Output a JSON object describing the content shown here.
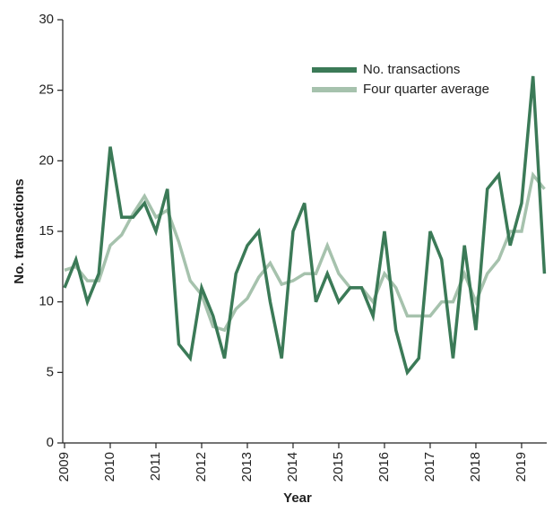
{
  "chart_data": {
    "type": "line",
    "x_label": "Year",
    "y_label": "No. transactions",
    "x": [
      2009,
      2009.25,
      2009.5,
      2009.75,
      2010,
      2010.25,
      2010.5,
      2010.75,
      2011,
      2011.25,
      2011.5,
      2011.75,
      2012,
      2012.25,
      2012.5,
      2012.75,
      2013,
      2013.25,
      2013.5,
      2013.75,
      2014,
      2014.25,
      2014.5,
      2014.75,
      2015,
      2015.25,
      2015.5,
      2015.75,
      2016,
      2016.25,
      2016.5,
      2016.75,
      2017,
      2017.25,
      2017.5,
      2017.75,
      2018,
      2018.25,
      2018.5,
      2018.75,
      2019,
      2019.25,
      2019.5
    ],
    "series": [
      {
        "name": "No. transactions",
        "color": "#3b7a57",
        "values": [
          11,
          13,
          10,
          12,
          21,
          16,
          16,
          17,
          15,
          18,
          7,
          6,
          11,
          9,
          6,
          12,
          14,
          15,
          10,
          6,
          15,
          17,
          10,
          12,
          10,
          11,
          11,
          9,
          15,
          8,
          5,
          6,
          15,
          13,
          6,
          14,
          8,
          18,
          19,
          14,
          17,
          26,
          12
        ]
      },
      {
        "name": "Four quarter average",
        "color": "#a6c2ad",
        "values": [
          12.25,
          12.5,
          11.5,
          11.5,
          14,
          14.75,
          16.25,
          17.5,
          16,
          16.5,
          14.25,
          11.5,
          10.5,
          8.25,
          8,
          9.5,
          10.25,
          11.75,
          12.75,
          11.25,
          11.5,
          12,
          12,
          14,
          12,
          11,
          11,
          10,
          12,
          11,
          9,
          9,
          9,
          10,
          10,
          12,
          10,
          12,
          13,
          15,
          15,
          19,
          18
        ]
      }
    ],
    "xlim": [
      2009,
      2019.55
    ],
    "xticks": [
      2009,
      2010,
      2011,
      2012,
      2013,
      2014,
      2015,
      2016,
      2017,
      2018,
      2019
    ],
    "ylim": [
      0,
      30
    ],
    "yticks": [
      0,
      5,
      10,
      15,
      20,
      25,
      30
    ],
    "legend": "upper right"
  }
}
